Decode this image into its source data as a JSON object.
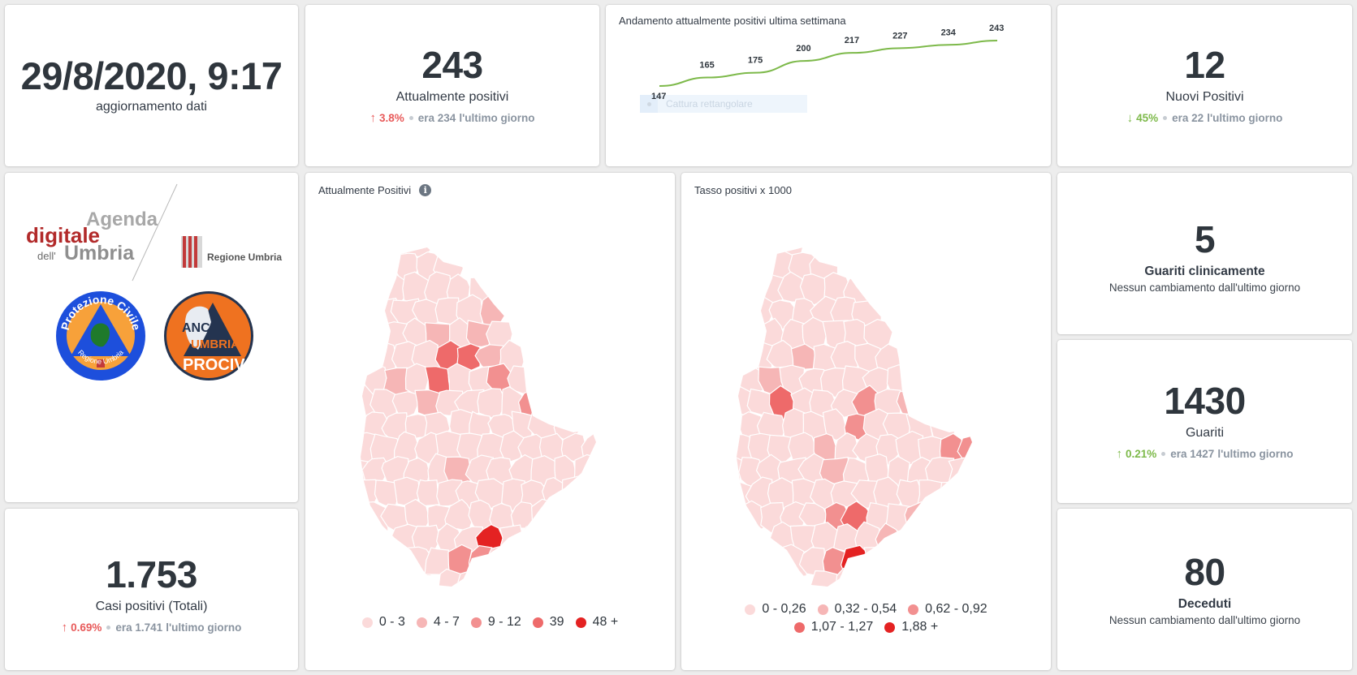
{
  "update": {
    "datetime": "29/8/2020, 9:17",
    "label": "aggiornamento dati"
  },
  "attualmente_positivi": {
    "value": "243",
    "label": "Attualmente positivi",
    "trend_arrow": "↑",
    "trend_pct": "3.8%",
    "prev_text": "era 234",
    "period": "l'ultimo giorno",
    "trend_color": "#e85a5a"
  },
  "chart_data": {
    "type": "line",
    "title": "Andamento attualmente positivi ultima settimana",
    "x": [
      1,
      2,
      3,
      4,
      5,
      6,
      7,
      8
    ],
    "values": [
      147,
      165,
      175,
      200,
      217,
      227,
      234,
      243
    ],
    "labels": [
      "147",
      "165",
      "175",
      "200",
      "217",
      "227",
      "234",
      "243"
    ],
    "ylim": [
      140,
      250
    ],
    "line_color": "#7db94a",
    "grid": false,
    "overlay_text": "Cattura rettangolare"
  },
  "nuovi_positivi": {
    "value": "12",
    "label": "Nuovi Positivi",
    "trend_arrow": "↓",
    "trend_pct": "45%",
    "prev_text": "era 22",
    "period": "l'ultimo giorno",
    "trend_color": "#7db94a"
  },
  "logos": {
    "agenda_line1": "Agenda",
    "agenda_line2": "digitale",
    "agenda_line3a": "dell'",
    "agenda_line3b": "Umbria",
    "regione": "Regione Umbria",
    "protezione_top": "Protezione Civile",
    "protezione_bottom": "Regione Umbria",
    "anci_1": "ANCI",
    "anci_2": "UMBRIA",
    "anci_3": "PROCIV"
  },
  "casi_totali": {
    "value": "1.753",
    "label": "Casi positivi (Totali)",
    "trend_arrow": "↑",
    "trend_pct": "0.69%",
    "prev_text": "era 1.741",
    "period": "l'ultimo giorno",
    "trend_color": "#e85a5a"
  },
  "map_positivi": {
    "title": "Attualmente Positivi",
    "info_icon": "info-icon",
    "legend": [
      {
        "label": "0 - 3",
        "color": "#fbdada"
      },
      {
        "label": "4 - 7",
        "color": "#f6b6b6"
      },
      {
        "label": "9 - 12",
        "color": "#f29090"
      },
      {
        "label": "39",
        "color": "#ee6a6a"
      },
      {
        "label": "48 +",
        "color": "#e42222"
      }
    ]
  },
  "map_tasso": {
    "title": "Tasso positivi x 1000",
    "legend": [
      {
        "label": "0 - 0,26",
        "color": "#fbdada"
      },
      {
        "label": "0,32 - 0,54",
        "color": "#f6b6b6"
      },
      {
        "label": "0,62 - 0,92",
        "color": "#f29090"
      },
      {
        "label": "1,07 - 1,27",
        "color": "#ee6a6a"
      },
      {
        "label": "1,88 +",
        "color": "#e42222"
      }
    ]
  },
  "guariti_clinicamente": {
    "value": "5",
    "label": "Guariti clinicamente",
    "note": "Nessun cambiamento dall'ultimo giorno"
  },
  "guariti": {
    "value": "1430",
    "label": "Guariti",
    "trend_arrow": "↑",
    "trend_pct": "0.21%",
    "prev_text": "era 1427",
    "period": "l'ultimo giorno",
    "trend_color": "#7db94a"
  },
  "deceduti": {
    "value": "80",
    "label": "Deceduti",
    "note": "Nessun cambiamento dall'ultimo giorno"
  }
}
